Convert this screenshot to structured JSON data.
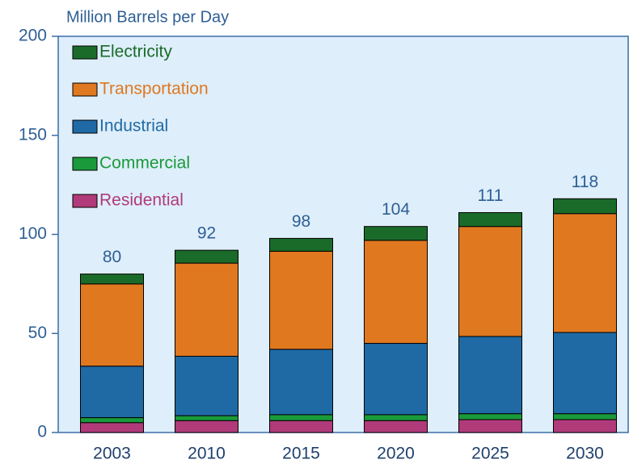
{
  "chart_data": {
    "type": "stacked_bar",
    "title": "Million Barrels per Day",
    "categories": [
      "2003",
      "2010",
      "2015",
      "2020",
      "2025",
      "2030"
    ],
    "series": [
      {
        "name": "Residential",
        "color": "#b03a7a",
        "values": [
          5,
          6,
          6,
          6,
          6.5,
          6.5
        ]
      },
      {
        "name": "Commercial",
        "color": "#1a9a3a",
        "values": [
          2.5,
          2.5,
          3,
          3,
          3,
          3
        ]
      },
      {
        "name": "Industrial",
        "color": "#1f6aa5",
        "values": [
          26,
          30,
          33,
          36,
          39,
          41
        ]
      },
      {
        "name": "Transportation",
        "color": "#e07820",
        "values": [
          41.5,
          47,
          49.5,
          52,
          55.5,
          60
        ]
      },
      {
        "name": "Electricity",
        "color": "#1a6b2a",
        "values": [
          5,
          6.5,
          6.5,
          7,
          7,
          7.5
        ]
      }
    ],
    "totals": [
      80,
      92,
      98,
      104,
      111,
      118
    ],
    "ylim": [
      0,
      200
    ],
    "yticks": [
      0,
      50,
      100,
      150,
      200
    ],
    "legend": "upper left"
  }
}
